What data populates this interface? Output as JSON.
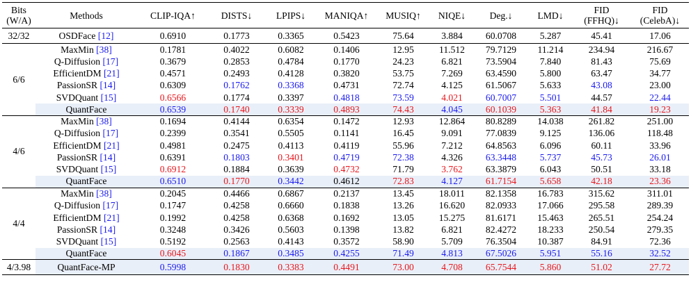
{
  "header": {
    "bits": "Bits\n(W/A)",
    "columns": [
      "Methods",
      "CLIP-IQA↑",
      "DISTS↓",
      "LPIPS↓",
      "MANIQA↑",
      "MUSIQ↑",
      "NIQE↓",
      "Deg.↓",
      "LMD↓",
      "FID\n(FFHQ)↓",
      "FID\n(CelebA)↓"
    ]
  },
  "colors": {
    "best": "#e8161c",
    "second": "#1a1af0",
    "highlight_row": "#e9eff8"
  },
  "groups": [
    {
      "bits": "32/32",
      "rows": [
        {
          "method": "OSDFace",
          "cite": "[12]",
          "highlight": false,
          "values": [
            "0.6910",
            "0.1773",
            "0.3365",
            "0.5423",
            "75.64",
            "3.884",
            "60.0708",
            "5.287",
            "45.41",
            "17.06"
          ],
          "colors": [
            "",
            "",
            "",
            "",
            "",
            "",
            "",
            "",
            "",
            ""
          ]
        }
      ]
    },
    {
      "bits": "6/6",
      "rows": [
        {
          "method": "MaxMin",
          "cite": "[38]",
          "highlight": false,
          "values": [
            "0.1781",
            "0.4022",
            "0.6082",
            "0.1406",
            "12.95",
            "11.512",
            "79.7129",
            "11.214",
            "234.94",
            "216.67"
          ],
          "colors": [
            "",
            "",
            "",
            "",
            "",
            "",
            "",
            "",
            "",
            ""
          ]
        },
        {
          "method": "Q-Diffusion",
          "cite": "[17]",
          "highlight": false,
          "values": [
            "0.3679",
            "0.2853",
            "0.4784",
            "0.1770",
            "24.23",
            "6.821",
            "73.5904",
            "7.840",
            "81.43",
            "75.69"
          ],
          "colors": [
            "",
            "",
            "",
            "",
            "",
            "",
            "",
            "",
            "",
            ""
          ]
        },
        {
          "method": "EfficientDM",
          "cite": "[21]",
          "highlight": false,
          "values": [
            "0.4571",
            "0.2493",
            "0.4128",
            "0.3820",
            "53.75",
            "7.269",
            "63.4590",
            "5.800",
            "63.47",
            "34.77"
          ],
          "colors": [
            "",
            "",
            "",
            "",
            "",
            "",
            "",
            "",
            "",
            ""
          ]
        },
        {
          "method": "PassionSR",
          "cite": "[14]",
          "highlight": false,
          "values": [
            "0.6309",
            "0.1762",
            "0.3368",
            "0.4731",
            "72.74",
            "4.125",
            "61.5067",
            "5.633",
            "43.08",
            "23.00"
          ],
          "colors": [
            "",
            "blue",
            "blue",
            "",
            "",
            "",
            "",
            "",
            "blue",
            ""
          ]
        },
        {
          "method": "SVDQuant",
          "cite": "[15]",
          "highlight": false,
          "values": [
            "0.6566",
            "0.1774",
            "0.3397",
            "0.4818",
            "73.59",
            "4.021",
            "60.7007",
            "5.501",
            "44.57",
            "22.44"
          ],
          "colors": [
            "red",
            "",
            "",
            "blue",
            "blue",
            "red",
            "blue",
            "blue",
            "",
            "blue"
          ]
        },
        {
          "method": "QuantFace",
          "cite": "",
          "highlight": true,
          "values": [
            "0.6539",
            "0.1740",
            "0.3339",
            "0.4893",
            "74.43",
            "4.045",
            "60.1039",
            "5.363",
            "41.84",
            "19.23"
          ],
          "colors": [
            "blue",
            "red",
            "red",
            "red",
            "red",
            "blue",
            "red",
            "red",
            "red",
            "red"
          ]
        }
      ]
    },
    {
      "bits": "4/6",
      "rows": [
        {
          "method": "MaxMin",
          "cite": "[38]",
          "highlight": false,
          "values": [
            "0.1694",
            "0.4144",
            "0.6354",
            "0.1472",
            "12.93",
            "12.864",
            "80.8289",
            "14.038",
            "261.82",
            "251.00"
          ],
          "colors": [
            "",
            "",
            "",
            "",
            "",
            "",
            "",
            "",
            "",
            ""
          ]
        },
        {
          "method": "Q-Diffusion",
          "cite": "[17]",
          "highlight": false,
          "values": [
            "0.2399",
            "0.3541",
            "0.5505",
            "0.1141",
            "16.45",
            "9.091",
            "77.0839",
            "9.125",
            "136.06",
            "118.48"
          ],
          "colors": [
            "",
            "",
            "",
            "",
            "",
            "",
            "",
            "",
            "",
            ""
          ]
        },
        {
          "method": "EfficientDM",
          "cite": "[21]",
          "highlight": false,
          "values": [
            "0.4981",
            "0.2475",
            "0.4113",
            "0.4119",
            "55.96",
            "7.212",
            "64.8563",
            "6.096",
            "60.11",
            "33.96"
          ],
          "colors": [
            "",
            "",
            "",
            "",
            "",
            "",
            "",
            "",
            "",
            ""
          ]
        },
        {
          "method": "PassionSR",
          "cite": "[14]",
          "highlight": false,
          "values": [
            "0.6391",
            "0.1803",
            "0.3401",
            "0.4719",
            "72.38",
            "4.326",
            "63.3448",
            "5.737",
            "45.73",
            "26.01"
          ],
          "colors": [
            "",
            "blue",
            "red",
            "blue",
            "blue",
            "",
            "blue",
            "blue",
            "blue",
            "blue"
          ]
        },
        {
          "method": "SVDQuant",
          "cite": "[15]",
          "highlight": false,
          "values": [
            "0.6912",
            "0.1884",
            "0.3639",
            "0.4732",
            "71.79",
            "3.762",
            "63.3879",
            "6.043",
            "50.51",
            "33.18"
          ],
          "colors": [
            "red",
            "",
            "",
            "red",
            "",
            "red",
            "",
            "",
            "",
            ""
          ]
        },
        {
          "method": "QuantFace",
          "cite": "",
          "highlight": true,
          "values": [
            "0.6510",
            "0.1770",
            "0.3442",
            "0.4612",
            "72.83",
            "4.127",
            "61.7154",
            "5.658",
            "42.18",
            "23.36"
          ],
          "colors": [
            "blue",
            "red",
            "blue",
            "",
            "red",
            "blue",
            "red",
            "red",
            "red",
            "red"
          ]
        }
      ]
    },
    {
      "bits": "4/4",
      "rows": [
        {
          "method": "MaxMin",
          "cite": "[38]",
          "highlight": false,
          "values": [
            "0.2045",
            "0.4466",
            "0.6867",
            "0.2137",
            "13.45",
            "18.011",
            "82.1358",
            "16.783",
            "315.62",
            "311.01"
          ],
          "colors": [
            "",
            "",
            "",
            "",
            "",
            "",
            "",
            "",
            "",
            ""
          ]
        },
        {
          "method": "Q-Diffusion",
          "cite": "[17]",
          "highlight": false,
          "values": [
            "0.1747",
            "0.4258",
            "0.6660",
            "0.1838",
            "13.26",
            "16.620",
            "82.0933",
            "17.066",
            "295.58",
            "289.39"
          ],
          "colors": [
            "",
            "",
            "",
            "",
            "",
            "",
            "",
            "",
            "",
            ""
          ]
        },
        {
          "method": "EfficientDM",
          "cite": "[21]",
          "highlight": false,
          "values": [
            "0.1992",
            "0.4258",
            "0.6368",
            "0.1692",
            "13.05",
            "15.275",
            "81.6171",
            "15.463",
            "265.51",
            "254.24"
          ],
          "colors": [
            "",
            "",
            "",
            "",
            "",
            "",
            "",
            "",
            "",
            ""
          ]
        },
        {
          "method": "PassionSR",
          "cite": "[14]",
          "highlight": false,
          "values": [
            "0.3248",
            "0.3426",
            "0.5603",
            "0.1398",
            "13.82",
            "6.821",
            "82.4272",
            "18.233",
            "250.54",
            "279.35"
          ],
          "colors": [
            "",
            "",
            "",
            "",
            "",
            "",
            "",
            "",
            "",
            ""
          ]
        },
        {
          "method": "SVDQuant",
          "cite": "[15]",
          "highlight": false,
          "values": [
            "0.5192",
            "0.2563",
            "0.4143",
            "0.3572",
            "58.90",
            "5.709",
            "76.3504",
            "10.387",
            "84.91",
            "72.36"
          ],
          "colors": [
            "",
            "",
            "",
            "",
            "",
            "",
            "",
            "",
            "",
            ""
          ]
        },
        {
          "method": "QuantFace",
          "cite": "",
          "highlight": true,
          "values": [
            "0.6045",
            "0.1867",
            "0.3485",
            "0.4255",
            "71.49",
            "4.813",
            "67.5026",
            "5.951",
            "55.16",
            "32.52"
          ],
          "colors": [
            "red",
            "blue",
            "blue",
            "blue",
            "blue",
            "blue",
            "blue",
            "blue",
            "blue",
            "blue"
          ]
        }
      ]
    },
    {
      "bits": "4/3.98",
      "rows": [
        {
          "method": "QuantFace-MP",
          "cite": "",
          "highlight": true,
          "values": [
            "0.5998",
            "0.1830",
            "0.3383",
            "0.4491",
            "73.00",
            "4.708",
            "65.7544",
            "5.860",
            "51.02",
            "27.72"
          ],
          "colors": [
            "blue",
            "red",
            "red",
            "red",
            "red",
            "red",
            "red",
            "red",
            "red",
            "red"
          ]
        }
      ]
    }
  ]
}
